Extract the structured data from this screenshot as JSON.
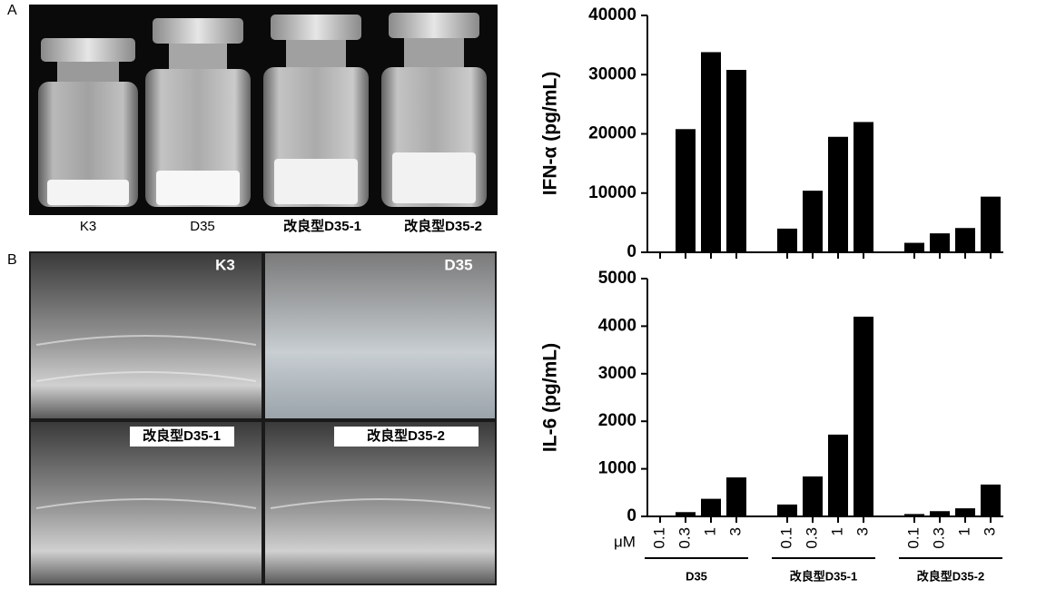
{
  "figure": {
    "panel_a": {
      "label": "A",
      "vials": [
        "K3",
        "D35",
        "改良型D35-1",
        "改良型D35-2"
      ]
    },
    "panel_b": {
      "label": "B",
      "captions": [
        "K3",
        "D35",
        "改良型D35-1",
        "改良型D35-2"
      ]
    }
  },
  "chart_data": [
    {
      "type": "bar",
      "ylabel": "IFN-α (pg/mL)",
      "color": "#000000",
      "ylim": [
        0,
        40000
      ],
      "yticks": [
        0,
        10000,
        20000,
        30000,
        40000
      ],
      "values": [
        [
          0,
          20800,
          33800,
          30800
        ],
        [
          4000,
          10400,
          19500,
          22000
        ],
        [
          1600,
          3200,
          4100,
          9400
        ]
      ]
    },
    {
      "type": "bar",
      "ylabel": "IL-6 (pg/mL)",
      "color": "#000000",
      "ylim": [
        0,
        5000
      ],
      "yticks": [
        0,
        1000,
        2000,
        3000,
        4000,
        5000
      ],
      "x_unit": "μM",
      "categories": [
        "0.1",
        "0.3",
        "1",
        "3"
      ],
      "groups": [
        "D35",
        "改良型D35-1",
        "改良型D35-2"
      ],
      "values": [
        [
          0,
          90,
          370,
          820
        ],
        [
          250,
          840,
          1720,
          4200
        ],
        [
          50,
          110,
          170,
          670
        ]
      ]
    }
  ]
}
